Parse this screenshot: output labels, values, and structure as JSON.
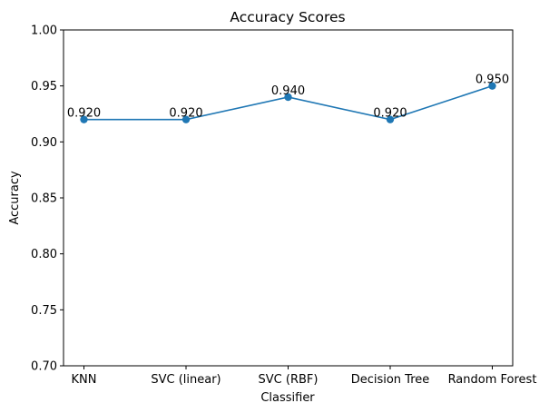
{
  "chart_data": {
    "type": "line",
    "title": "Accuracy Scores",
    "xlabel": "Classifier",
    "ylabel": "Accuracy",
    "categories": [
      "KNN",
      "SVC (linear)",
      "SVC (RBF)",
      "Decision Tree",
      "Random Forest"
    ],
    "values": [
      0.92,
      0.92,
      0.94,
      0.92,
      0.95
    ],
    "data_labels": [
      "0.920",
      "0.920",
      "0.940",
      "0.920",
      "0.950"
    ],
    "ylim": [
      0.7,
      1.0
    ],
    "yticks": [
      "0.70",
      "0.75",
      "0.80",
      "0.85",
      "0.90",
      "0.95",
      "1.00"
    ],
    "ytick_values": [
      0.7,
      0.75,
      0.8,
      0.85,
      0.9,
      0.95,
      1.0
    ],
    "grid": false,
    "color": "#1f77b4"
  }
}
